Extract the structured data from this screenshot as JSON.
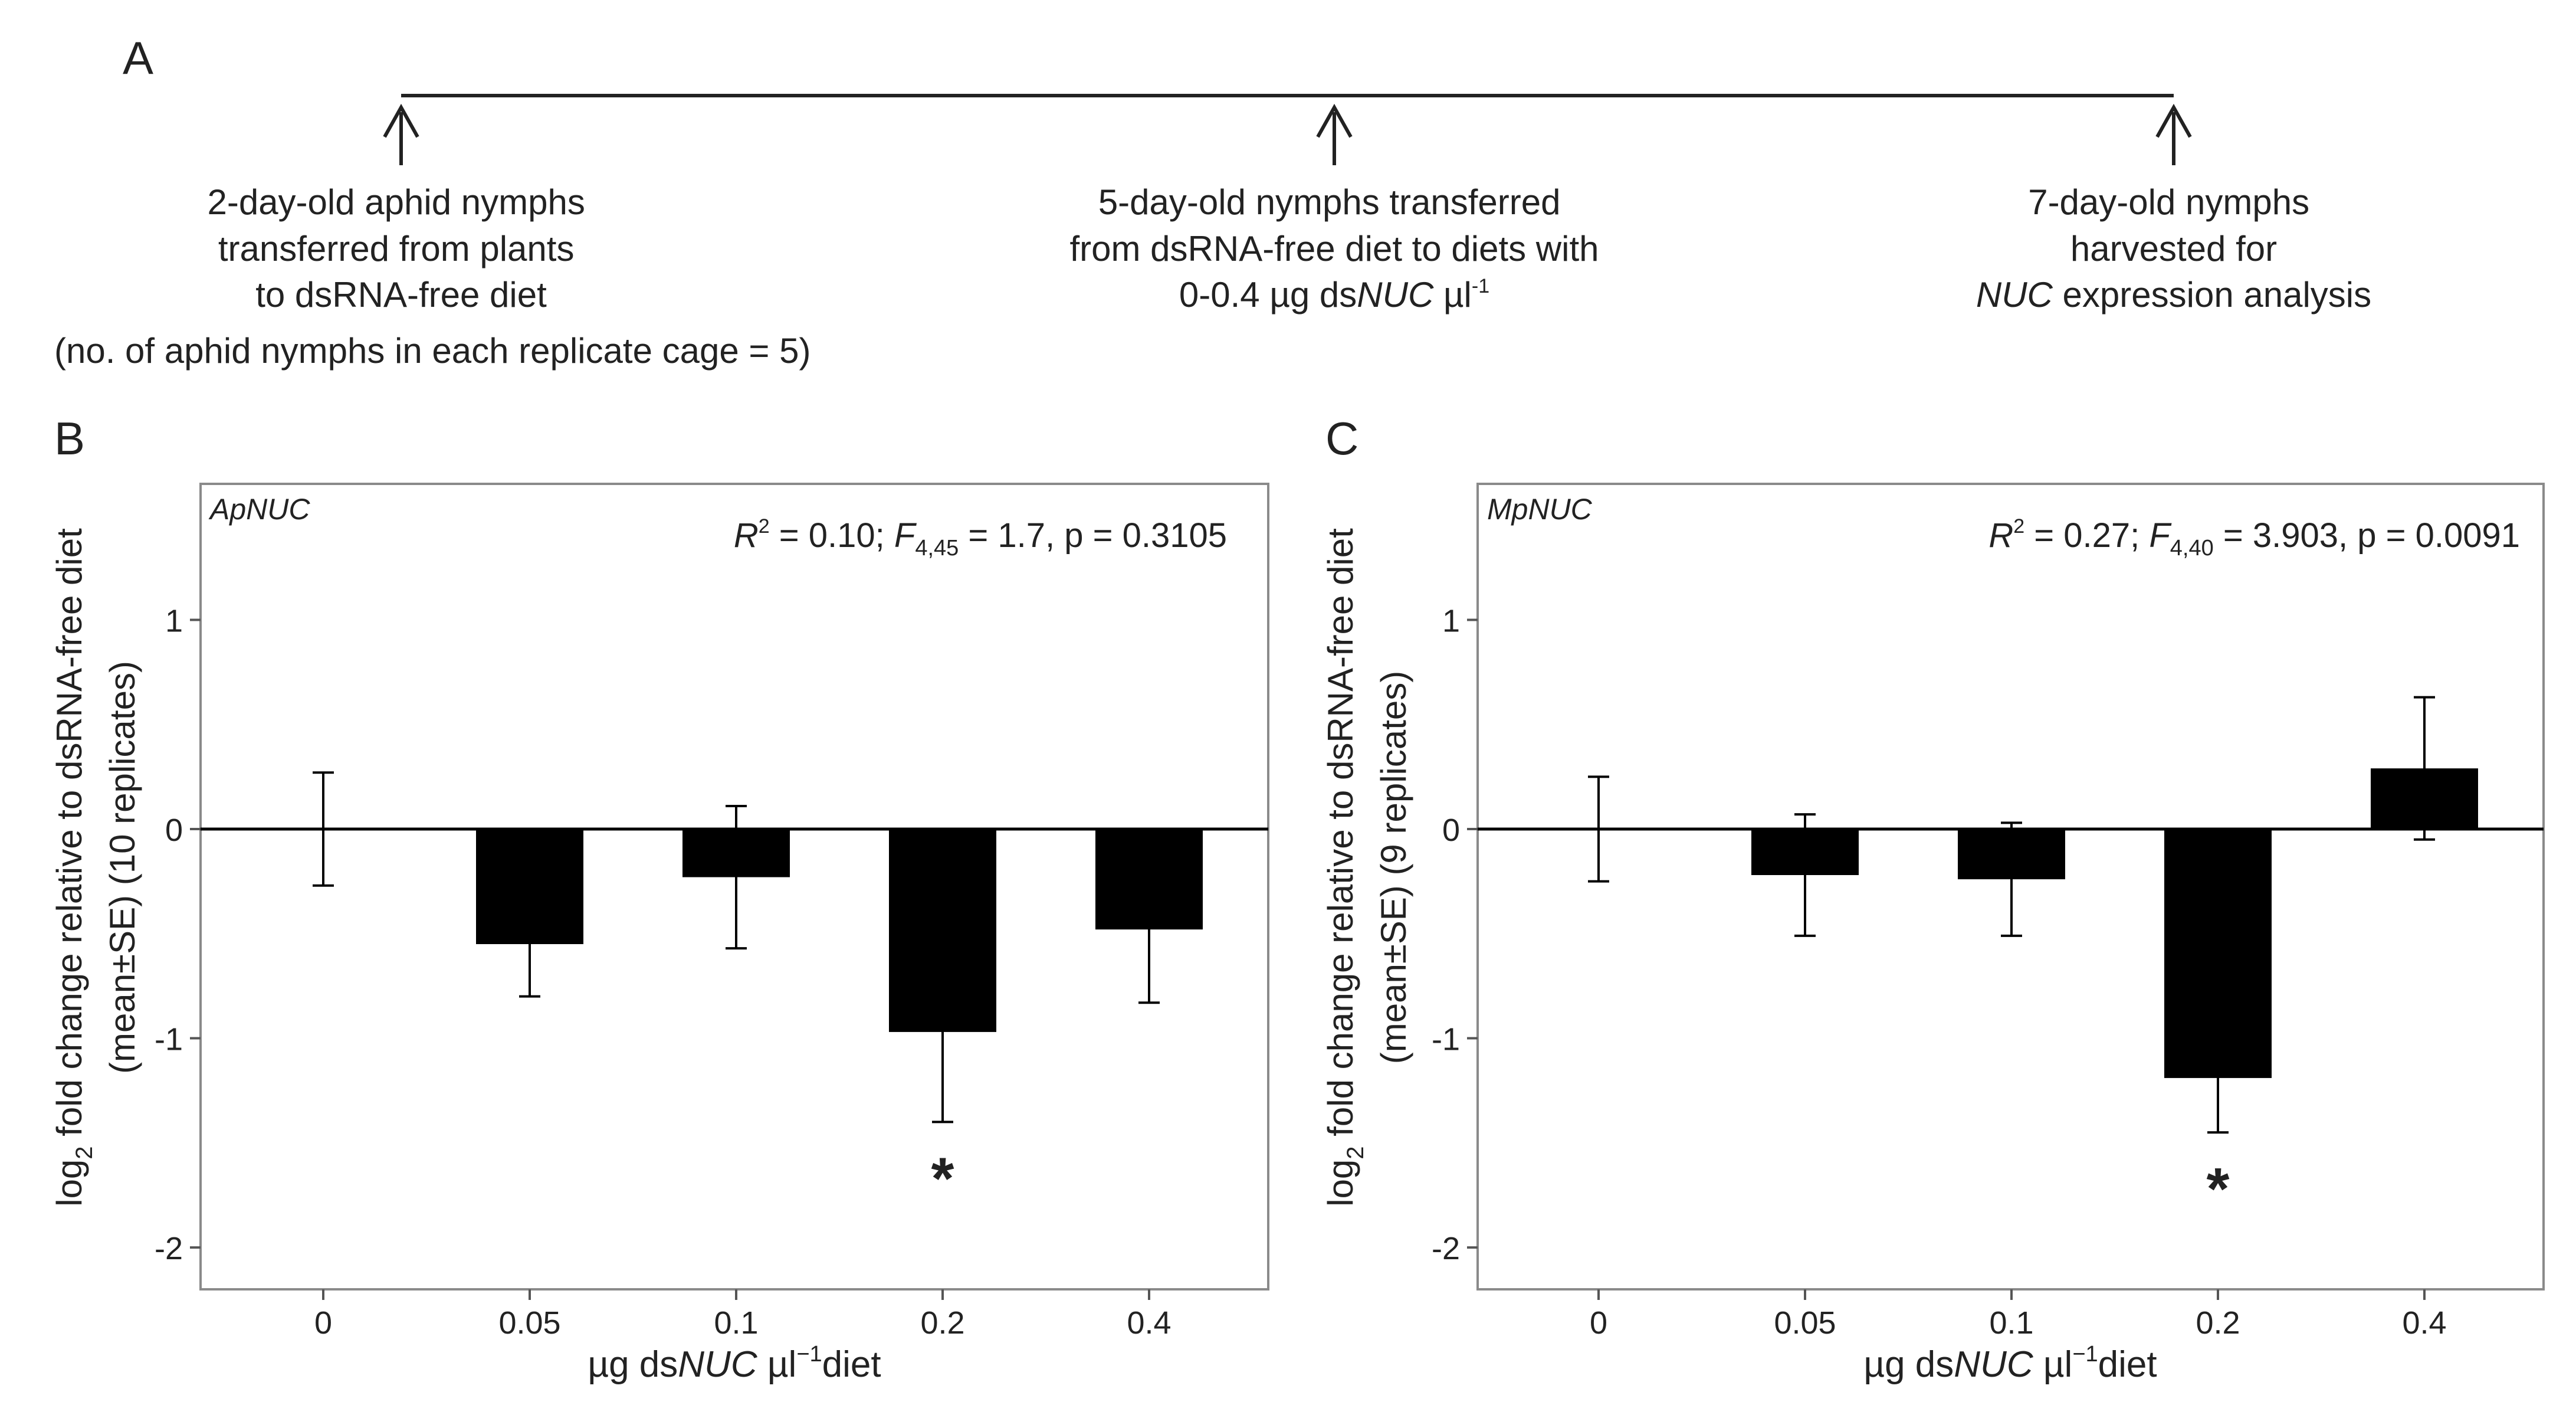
{
  "timeline": {
    "panel_label": "A",
    "points": [
      {
        "lines": [
          "2-day-old aphid nymphs",
          "transferred from plants",
          "to dsRNA-free diet"
        ]
      },
      {
        "lines": [
          "5-day-old nymphs transferred",
          "from dsRNA-free diet to diets with"
        ],
        "last_line": {
          "pre": "0-0.4 µg ds",
          "italic": "NUC",
          "post": " µl",
          "sup": "-1"
        }
      },
      {
        "lines": [
          "7-day-old nymphs",
          "harvested for"
        ],
        "last_line": {
          "italic": "NUC",
          "post": " expression analysis"
        }
      }
    ],
    "footnote": "(no. of aphid nymphs in each replicate cage = 5)"
  },
  "ylabel": {
    "line1_pre": "log",
    "line1_sub": "2",
    "line1_post": " fold change relative to dsRNA-free diet"
  },
  "xlabel": {
    "pre": "µg ds",
    "italic": "NUC",
    "mid": " µl",
    "sup": "−1",
    "post": "diet"
  },
  "chart_data": [
    {
      "type": "bar",
      "panel_label": "B",
      "gene": "ApNUC",
      "ylabel_line2": "(mean±SE) (10 replicates)",
      "stats": {
        "r": "R",
        "r_sup": "2",
        "r_val": " = 0.10; ",
        "f": "F",
        "f_sub": "4,45",
        "f_val": " = 1.7, p = 0.3105"
      },
      "categories": [
        "0",
        "0.05",
        "0.1",
        "0.2",
        "0.4"
      ],
      "values": [
        0,
        -0.55,
        -0.23,
        -0.97,
        -0.48
      ],
      "errors": [
        0.27,
        0.25,
        0.34,
        0.43,
        0.35
      ],
      "significance": [
        "",
        "",
        "",
        "*",
        ""
      ],
      "ylim": [
        -2.2,
        1.65
      ],
      "yticks": [
        1,
        0,
        -1,
        -2
      ],
      "ytick_labels": [
        "1",
        "0",
        "-1",
        "-2"
      ]
    },
    {
      "type": "bar",
      "panel_label": "C",
      "gene": "MpNUC",
      "ylabel_line2": "(mean±SE) (9 replicates)",
      "stats": {
        "r": "R",
        "r_sup": "2",
        "r_val": " = 0.27; ",
        "f": "F",
        "f_sub": "4,40",
        "f_val": " = 3.903, p = 0.0091"
      },
      "categories": [
        "0",
        "0.05",
        "0.1",
        "0.2",
        "0.4"
      ],
      "values": [
        0,
        -0.22,
        -0.24,
        -1.19,
        0.29
      ],
      "errors": [
        0.25,
        0.29,
        0.27,
        0.26,
        0.34
      ],
      "significance": [
        "",
        "",
        "",
        "*",
        ""
      ],
      "ylim": [
        -2.2,
        1.65
      ],
      "yticks": [
        1,
        0,
        -1,
        -2
      ],
      "ytick_labels": [
        "1",
        "0",
        "-1",
        "-2"
      ]
    }
  ]
}
